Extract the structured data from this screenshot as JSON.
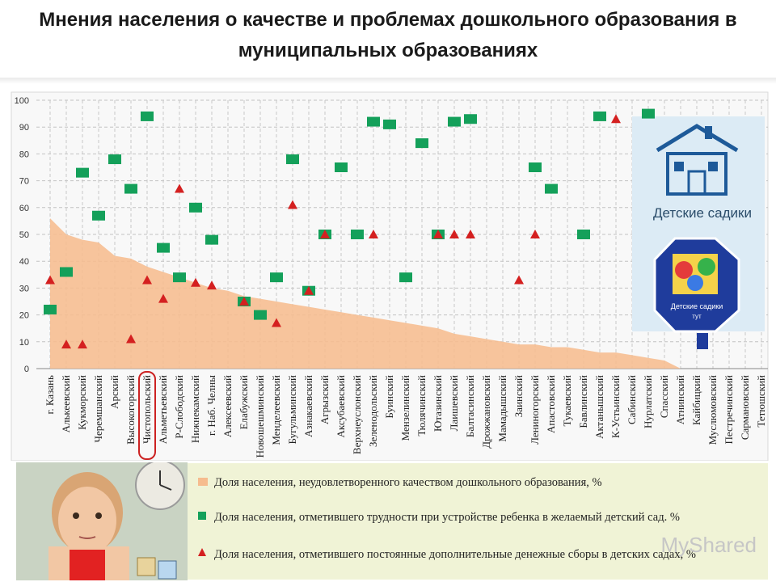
{
  "title": "Мнения населения о качестве и проблемах дошкольного образования в муниципальных образованиях",
  "chart_data": {
    "type": "area",
    "categories": [
      "г. Казань",
      "Алькеевский",
      "Кукморский",
      "Черемшанский",
      "Арский",
      "Высокогорский",
      "Чистопольский",
      "Альметьевский",
      "Р-Слободский",
      "Нижнекамский",
      "г. Наб. Челны",
      "Алексеевский",
      "Елабужский",
      "Новошешминский",
      "Менделеевский",
      "Бугульминский",
      "Азнакаевский",
      "Агрызский",
      "Аксубаевский",
      "Верхнеуслонский",
      "Зеленодольский",
      "Буинский",
      "Мензелинский",
      "Тюлячинский",
      "Ютазинский",
      "Лаишевский",
      "Балтасинский",
      "Дрожжановский",
      "Мамадышский",
      "Заинский",
      "Лениногорский",
      "Апастовский",
      "Тукаевский",
      "Бавлинский",
      "Актанышский",
      "К-Устьинский",
      "Сабинский",
      "Нурлатский",
      "Спасский",
      "Атнинский",
      "Кайбицкий",
      "Муслюмовский",
      "Пестречинский",
      "Сармановский",
      "Тетюшский"
    ],
    "series": [
      {
        "name": "Доля населения, неудовлетворенного качеством дошкольного образования, %",
        "type": "area",
        "color": "#f6bc8e",
        "values": [
          56,
          50,
          48,
          47,
          42,
          41,
          38,
          36,
          34,
          32,
          30,
          29,
          27,
          26,
          25,
          24,
          23,
          22,
          21,
          20,
          19,
          18,
          17,
          16,
          15,
          13,
          12,
          11,
          10,
          9,
          9,
          8,
          8,
          7,
          6,
          6,
          5,
          4,
          3,
          0,
          0,
          0,
          0,
          0,
          0
        ]
      },
      {
        "name": "Доля населения, отметившего трудности при устройстве ребенка в желаемый детский сад. %",
        "type": "scatter",
        "marker": "square",
        "color": "#14a05a",
        "values": [
          22,
          36,
          73,
          57,
          78,
          67,
          94,
          45,
          34,
          60,
          48,
          null,
          25,
          20,
          34,
          78,
          29,
          50,
          75,
          50,
          92,
          91,
          34,
          84,
          50,
          92,
          93,
          null,
          null,
          null,
          75,
          67,
          null,
          50,
          94,
          null,
          null,
          95,
          null,
          null,
          null,
          null,
          null,
          null,
          null
        ]
      },
      {
        "name": "Доля населения, отметившего постоянные дополнительные денежные сборы в детских садах, %",
        "type": "scatter",
        "marker": "triangle",
        "color": "#d42020",
        "values": [
          33,
          9,
          9,
          null,
          null,
          11,
          33,
          26,
          67,
          32,
          31,
          null,
          25,
          null,
          17,
          61,
          29,
          50,
          null,
          null,
          50,
          null,
          null,
          null,
          50,
          50,
          50,
          null,
          null,
          33,
          50,
          null,
          null,
          null,
          null,
          93,
          null,
          null,
          null,
          null,
          null,
          null,
          null,
          null,
          null
        ]
      }
    ],
    "ylim": [
      0,
      100
    ],
    "yticks": [
      0,
      10,
      20,
      30,
      40,
      50,
      60,
      70,
      80,
      90,
      100
    ],
    "grid": true,
    "legend_position": "bottom",
    "highlighted_category": "Чистопольский",
    "highlight_color": "#cc2222"
  },
  "overlays": {
    "kindergarten_label": "Детские садики",
    "sign_label": "Детские садики",
    "sign_sublabel": "тут",
    "house_color": "#1e5a99",
    "sign_color": "#1f3c9c"
  },
  "legend": [
    {
      "marker": "area",
      "text": "Доля населения, неудовлетворенного качеством дошкольного образования, %"
    },
    {
      "marker": "square",
      "text": "Доля населения, отметившего трудности при устройстве ребенка в желаемый детский сад. %"
    },
    {
      "marker": "triangle",
      "text": "Доля населения, отметившего постоянные дополнительные денежные сборы в детских садах, %"
    }
  ],
  "watermark": "MyShared"
}
